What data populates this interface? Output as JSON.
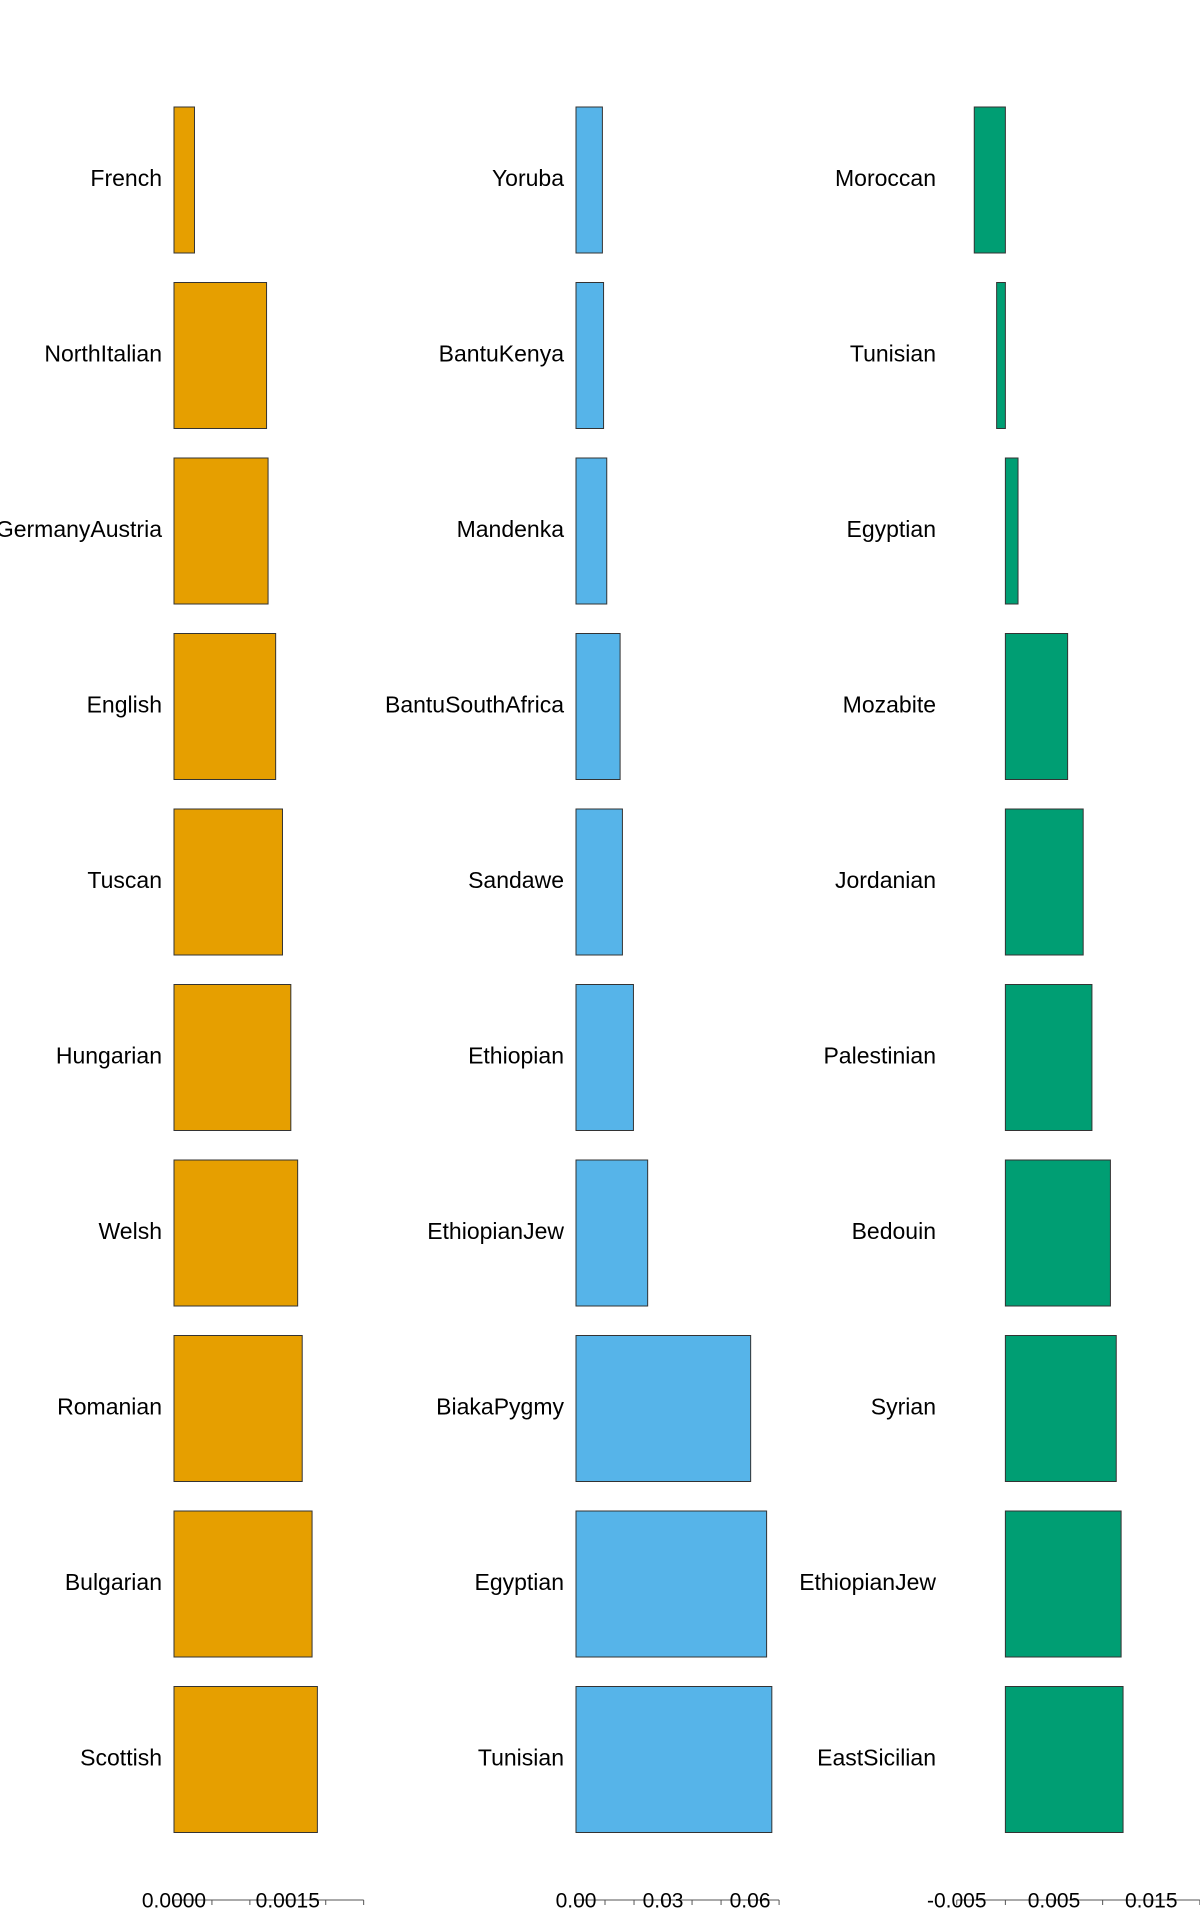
{
  "chart_data": [
    {
      "type": "bar",
      "orientation": "horizontal",
      "categories": [
        "French",
        "NorthItalian",
        "GermanyAustria",
        "English",
        "Tuscan",
        "Hungarian",
        "Welsh",
        "Romanian",
        "Bulgarian",
        "Scottish"
      ],
      "values": [
        0.00027,
        0.00122,
        0.00124,
        0.00134,
        0.00143,
        0.00154,
        0.00163,
        0.00169,
        0.00182,
        0.00189
      ],
      "xlim": [
        0,
        0.0029
      ],
      "ticks": [
        0,
        0.0005,
        0.001,
        0.0015,
        0.002,
        0.0025
      ],
      "tick_labels": [
        "0.0000",
        "",
        "",
        "0.0015",
        "",
        ""
      ],
      "title": "",
      "xlabel": "",
      "ylabel": "",
      "color": "#E69F00",
      "grid": false
    },
    {
      "type": "bar",
      "orientation": "horizontal",
      "categories": [
        "Yoruba",
        "BantuKenya",
        "Mandenka",
        "BantuSouthAfrica",
        "Sandawe",
        "Ethiopian",
        "EthiopianJew",
        "BiakaPygmy",
        "Egyptian",
        "Tunisian"
      ],
      "values": [
        0.0091,
        0.0095,
        0.0106,
        0.0152,
        0.016,
        0.0198,
        0.0247,
        0.0602,
        0.0657,
        0.0675
      ],
      "xlim": [
        0,
        0.0779
      ],
      "ticks": [
        0,
        0.01,
        0.02,
        0.03,
        0.04,
        0.05,
        0.06,
        0.07
      ],
      "tick_labels": [
        "0.00",
        "",
        "",
        "0.03",
        "",
        "",
        "0.06",
        ""
      ],
      "title": "",
      "xlabel": "",
      "ylabel": "",
      "color": "#56B4E9",
      "grid": false
    },
    {
      "type": "bar",
      "orientation": "horizontal",
      "categories": [
        "Moroccan",
        "Tunisian",
        "Egyptian",
        "Mozabite",
        "Jordanian",
        "Palestinian",
        "Bedouin",
        "Syrian",
        "EthiopianJew",
        "EastSicilian"
      ],
      "values": [
        -0.0032,
        -0.0009,
        0.0013,
        0.0064,
        0.008,
        0.0089,
        0.0108,
        0.0114,
        0.0119,
        0.0121
      ],
      "xlim": [
        -0.0059,
        0.0196
      ],
      "ticks": [
        -0.005,
        0,
        0.005,
        0.01,
        0.015,
        0.02
      ],
      "tick_labels": [
        "-0.005",
        "",
        "0.005",
        "",
        "0.015",
        ""
      ],
      "title": "",
      "xlabel": "",
      "ylabel": "",
      "color": "#009E73",
      "grid": false
    }
  ]
}
